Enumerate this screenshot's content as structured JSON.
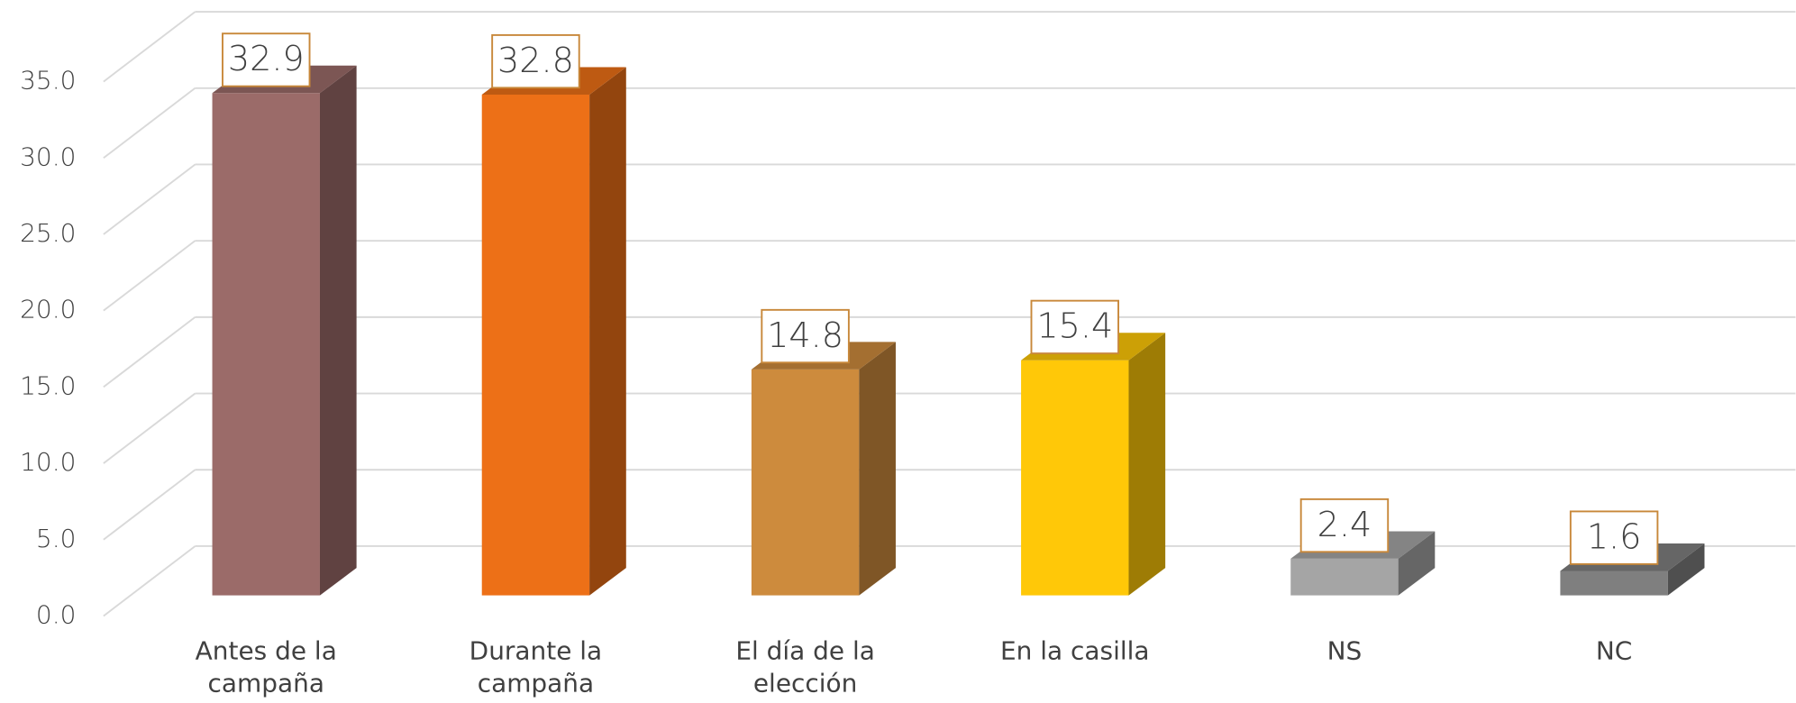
{
  "chart_data": {
    "type": "bar3d",
    "categories": [
      "Antes de la campaña",
      "Durante la campaña",
      "El día de la elección",
      "En la casilla",
      "NS",
      "NC"
    ],
    "values": [
      32.9,
      32.8,
      14.8,
      15.4,
      2.4,
      1.6
    ],
    "colors": [
      "#9b6b69",
      "#ed7017",
      "#cd8b3d",
      "#ffc808",
      "#a5a5a5",
      "#7f7f7f"
    ],
    "ylim": [
      0,
      35
    ],
    "yticks": [
      {
        "value": 0,
        "label": "0.0"
      },
      {
        "value": 5,
        "label": "5.0"
      },
      {
        "value": 10,
        "label": "10.0"
      },
      {
        "value": 15,
        "label": "15.0"
      },
      {
        "value": 20,
        "label": "20.0"
      },
      {
        "value": 25,
        "label": "25.0"
      },
      {
        "value": 30,
        "label": "30.0"
      },
      {
        "value": 35,
        "label": "35.0"
      }
    ],
    "grid": true
  }
}
